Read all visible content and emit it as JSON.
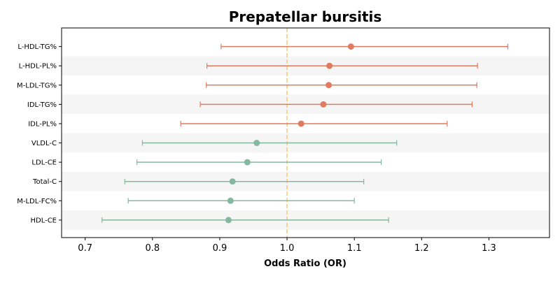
{
  "chart_data": {
    "type": "forest",
    "title": "Prepatellar bursitis",
    "xlabel": "Odds Ratio (OR)",
    "ylabel": "",
    "xlim": [
      0.665,
      1.39
    ],
    "xticks": [
      0.7,
      0.8,
      0.9,
      1.0,
      1.1,
      1.2,
      1.3
    ],
    "xtick_labels": [
      "0.7",
      "0.8",
      "0.9",
      "1.0",
      "1.1",
      "1.2",
      "1.3"
    ],
    "reference_line": 1.0,
    "grid": false,
    "alternating_row_shading": true,
    "colors": {
      "positive": "#e07b5f",
      "negative": "#85b8a0",
      "reference": "#f5c97e",
      "band": "#f5f5f5"
    },
    "rows": [
      {
        "label": "L-HDL-TG%",
        "or": 1.095,
        "lower": 0.902,
        "upper": 1.328
      },
      {
        "label": "L-HDL-PL%",
        "or": 1.063,
        "lower": 0.881,
        "upper": 1.283
      },
      {
        "label": "M-LDL-TG%",
        "or": 1.062,
        "lower": 0.88,
        "upper": 1.282
      },
      {
        "label": "IDL-TG%",
        "or": 1.054,
        "lower": 0.871,
        "upper": 1.275
      },
      {
        "label": "IDL-PL%",
        "or": 1.021,
        "lower": 0.842,
        "upper": 1.238
      },
      {
        "label": "VLDL-C",
        "or": 0.955,
        "lower": 0.785,
        "upper": 1.163
      },
      {
        "label": "LDL-CE",
        "or": 0.941,
        "lower": 0.777,
        "upper": 1.14
      },
      {
        "label": "Total-C",
        "or": 0.919,
        "lower": 0.759,
        "upper": 1.114
      },
      {
        "label": "M-LDL-FC%",
        "or": 0.916,
        "lower": 0.764,
        "upper": 1.1
      },
      {
        "label": "HDL-CE",
        "or": 0.913,
        "lower": 0.725,
        "upper": 1.151
      }
    ]
  }
}
